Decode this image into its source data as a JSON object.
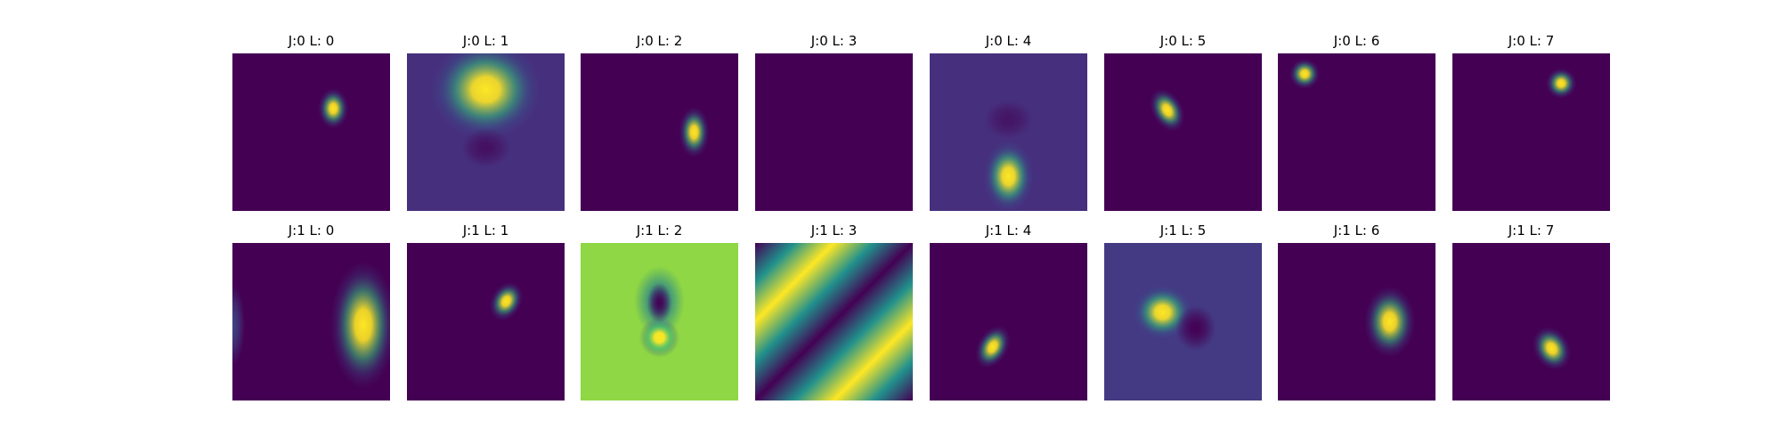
{
  "chart_data": [
    {
      "type": "heatmap",
      "title": "J:0 L: 0",
      "grid": false,
      "background": "#440154",
      "blobs": [
        {
          "x": 0.64,
          "y": 0.35,
          "rx": 0.06,
          "ry": 0.08,
          "color": "#fde725",
          "opacity": 1
        }
      ],
      "fields": []
    },
    {
      "type": "heatmap",
      "title": "J:0 L: 1",
      "grid": false,
      "background": "#46307e",
      "blobs": [
        {
          "x": 0.5,
          "y": 0.23,
          "rx": 0.22,
          "ry": 0.2,
          "color": "#fde725",
          "opacity": 1
        },
        {
          "x": 0.5,
          "y": 0.6,
          "rx": 0.1,
          "ry": 0.08,
          "color": "#440154",
          "opacity": 0.7
        }
      ],
      "fields": []
    },
    {
      "type": "heatmap",
      "title": "J:0 L: 2",
      "grid": false,
      "background": "#440154",
      "blobs": [
        {
          "x": 0.72,
          "y": 0.5,
          "rx": 0.06,
          "ry": 0.1,
          "color": "#fde725",
          "opacity": 1
        }
      ],
      "fields": []
    },
    {
      "type": "heatmap",
      "title": "J:0 L: 3",
      "grid": false,
      "background": "#440154",
      "blobs": [],
      "fields": []
    },
    {
      "type": "heatmap",
      "title": "J:0 L: 4",
      "grid": false,
      "background": "#46307e",
      "blobs": [
        {
          "x": 0.5,
          "y": 0.78,
          "rx": 0.1,
          "ry": 0.14,
          "color": "#fde725",
          "opacity": 1
        },
        {
          "x": 0.5,
          "y": 0.42,
          "rx": 0.1,
          "ry": 0.08,
          "color": "#440154",
          "opacity": 0.6
        }
      ],
      "fields": []
    },
    {
      "type": "heatmap",
      "title": "J:0 L: 5",
      "grid": false,
      "background": "#440154",
      "blobs": [
        {
          "x": 0.4,
          "y": 0.36,
          "rx": 0.06,
          "ry": 0.09,
          "color": "#fde725",
          "opacity": 1,
          "rotate": -30
        }
      ],
      "fields": []
    },
    {
      "type": "heatmap",
      "title": "J:0 L: 6",
      "grid": false,
      "background": "#440154",
      "blobs": [
        {
          "x": 0.17,
          "y": 0.13,
          "rx": 0.06,
          "ry": 0.06,
          "color": "#fde725",
          "opacity": 1
        }
      ],
      "fields": []
    },
    {
      "type": "heatmap",
      "title": "J:0 L: 7",
      "grid": false,
      "background": "#440154",
      "blobs": [
        {
          "x": 0.69,
          "y": 0.19,
          "rx": 0.06,
          "ry": 0.06,
          "color": "#fde725",
          "opacity": 1
        }
      ],
      "fields": []
    },
    {
      "type": "heatmap",
      "title": "J:1 L: 0",
      "grid": false,
      "background": "#440154",
      "blobs": [
        {
          "x": 0.83,
          "y": 0.52,
          "rx": 0.13,
          "ry": 0.25,
          "color": "#fde725",
          "opacity": 1
        },
        {
          "x": 0.0,
          "y": 0.52,
          "rx": 0.05,
          "ry": 0.16,
          "color": "#3e4a89",
          "opacity": 0.9
        }
      ],
      "fields": []
    },
    {
      "type": "heatmap",
      "title": "J:1 L: 1",
      "grid": false,
      "background": "#440154",
      "blobs": [
        {
          "x": 0.63,
          "y": 0.37,
          "rx": 0.06,
          "ry": 0.08,
          "color": "#fde725",
          "opacity": 1,
          "rotate": 30
        }
      ],
      "fields": []
    },
    {
      "type": "heatmap",
      "title": "J:1 L: 2",
      "grid": false,
      "background": "#8fd744",
      "blobs": [
        {
          "x": 0.5,
          "y": 0.37,
          "rx": 0.1,
          "ry": 0.14,
          "color": "#26828e",
          "opacity": 1
        },
        {
          "x": 0.5,
          "y": 0.38,
          "rx": 0.05,
          "ry": 0.08,
          "color": "#440154",
          "opacity": 1
        },
        {
          "x": 0.5,
          "y": 0.6,
          "rx": 0.08,
          "ry": 0.08,
          "color": "#fde725",
          "opacity": 1
        }
      ],
      "fields": []
    },
    {
      "type": "heatmap",
      "title": "J:1 L: 3",
      "grid": false,
      "background": "#21918c",
      "blobs": [],
      "fields": [
        {
          "kind": "stripes",
          "angle": -45,
          "period": 0.5,
          "colors": [
            "#440154",
            "#21918c",
            "#fde725",
            "#21918c"
          ]
        }
      ]
    },
    {
      "type": "heatmap",
      "title": "J:1 L: 4",
      "grid": false,
      "background": "#440154",
      "blobs": [
        {
          "x": 0.4,
          "y": 0.66,
          "rx": 0.06,
          "ry": 0.09,
          "color": "#fde725",
          "opacity": 1,
          "rotate": 30
        }
      ],
      "fields": []
    },
    {
      "type": "heatmap",
      "title": "J:1 L: 5",
      "grid": false,
      "background": "#443983",
      "blobs": [
        {
          "x": 0.37,
          "y": 0.44,
          "rx": 0.12,
          "ry": 0.11,
          "color": "#fde725",
          "opacity": 1
        },
        {
          "x": 0.58,
          "y": 0.54,
          "rx": 0.08,
          "ry": 0.09,
          "color": "#440154",
          "opacity": 1
        }
      ],
      "fields": []
    },
    {
      "type": "heatmap",
      "title": "J:1 L: 6",
      "grid": false,
      "background": "#440154",
      "blobs": [
        {
          "x": 0.71,
          "y": 0.5,
          "rx": 0.1,
          "ry": 0.14,
          "color": "#fde725",
          "opacity": 1
        }
      ],
      "fields": []
    },
    {
      "type": "heatmap",
      "title": "J:1 L: 7",
      "grid": false,
      "background": "#440154",
      "blobs": [
        {
          "x": 0.63,
          "y": 0.67,
          "rx": 0.07,
          "ry": 0.09,
          "color": "#fde725",
          "opacity": 1,
          "rotate": -30
        }
      ],
      "fields": []
    }
  ]
}
